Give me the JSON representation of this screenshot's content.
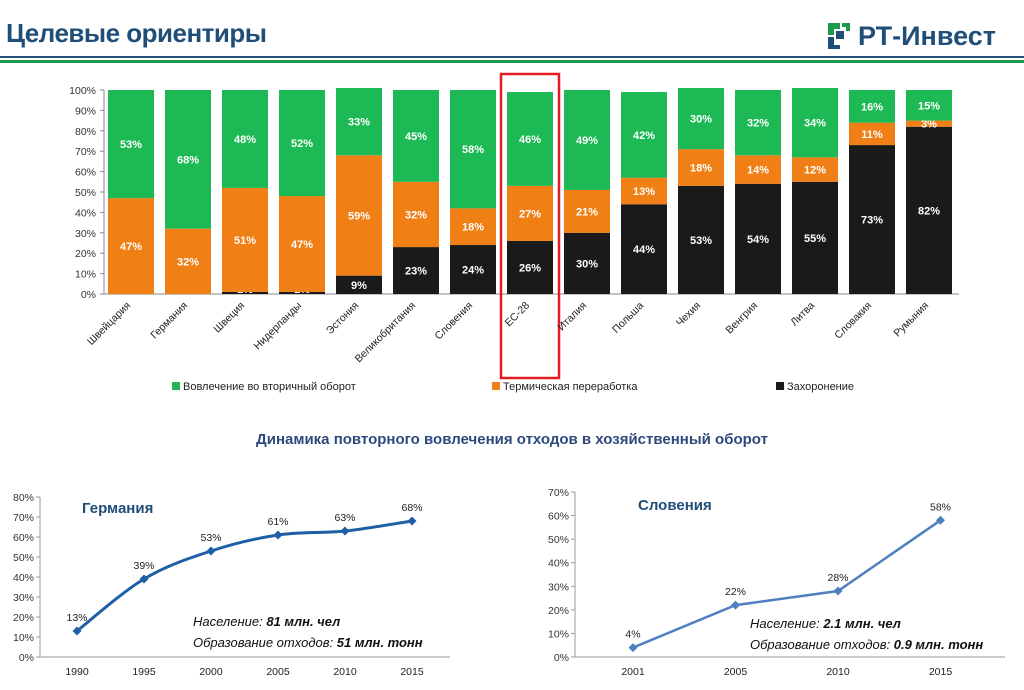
{
  "page": {
    "title": "Целевые ориентиры",
    "logo_text": "РТ-Инвест",
    "section_title": "Динамика повторного вовлечения отходов в хозяйственный оборот"
  },
  "colors": {
    "recycling": "#1db954",
    "thermal": "#f07f16",
    "landfill": "#1a1a1a",
    "brand_blue": "#1f4e79",
    "brand_green": "#1a9a4a",
    "highlight": "#e31b23",
    "line_germany": "#1f5fa6",
    "line_slovenia": "#4f7fbf"
  },
  "chart_data": [
    {
      "type": "bar",
      "stacked": true,
      "categories": [
        "Швейцария",
        "Германия",
        "Швеция",
        "Нидерланды",
        "Эстония",
        "Великобритания",
        "Словения",
        "ЕС-28",
        "Италия",
        "Польша",
        "Чехия",
        "Венгрия",
        "Литва",
        "Словакия",
        "Румыния"
      ],
      "series": [
        {
          "name": "Захоронение",
          "values": [
            0,
            0,
            1,
            1,
            9,
            23,
            24,
            26,
            30,
            44,
            53,
            54,
            55,
            73,
            82
          ],
          "labels": [
            "",
            "",
            "1%",
            "1%",
            "9%",
            "23%",
            "24%",
            "26%",
            "30%",
            "44%",
            "53%",
            "54%",
            "55%",
            "73%",
            "82%"
          ]
        },
        {
          "name": "Термическая переработка",
          "values": [
            47,
            32,
            51,
            47,
            59,
            32,
            18,
            27,
            21,
            13,
            18,
            14,
            12,
            11,
            3
          ],
          "labels": [
            "47%",
            "32%",
            "51%",
            "47%",
            "59%",
            "32%",
            "18%",
            "27%",
            "21%",
            "13%",
            "18%",
            "14%",
            "12%",
            "11%",
            "3%"
          ]
        },
        {
          "name": "Вовлечение во вторичный оборот",
          "values": [
            53,
            68,
            48,
            52,
            33,
            45,
            58,
            46,
            49,
            42,
            30,
            32,
            34,
            16,
            15
          ],
          "labels": [
            "53%",
            "68%",
            "48%",
            "52%",
            "33%",
            "45%",
            "58%",
            "46%",
            "49%",
            "42%",
            "30%",
            "32%",
            "34%",
            "16%",
            "15%"
          ]
        }
      ],
      "legend": [
        "Вовлечение во вторичный оборот",
        "Термическая переработка",
        "Захоронение"
      ],
      "legend_placement": "bottom",
      "yticks": [
        "0%",
        "10%",
        "20%",
        "30%",
        "40%",
        "50%",
        "60%",
        "70%",
        "80%",
        "90%",
        "100%"
      ],
      "ylim": [
        0,
        100
      ],
      "highlight_category": "ЕС-28"
    },
    {
      "type": "line",
      "title": "Германия",
      "x": [
        "1990",
        "1995",
        "2000",
        "2005",
        "2010",
        "2015"
      ],
      "values": [
        13,
        39,
        53,
        61,
        63,
        68
      ],
      "labels": [
        "13%",
        "39%",
        "53%",
        "61%",
        "63%",
        "68%"
      ],
      "yticks": [
        "0%",
        "10%",
        "20%",
        "30%",
        "40%",
        "50%",
        "60%",
        "70%",
        "80%"
      ],
      "ylim": [
        0,
        80
      ],
      "smooth": true,
      "note_population_label": "Население:",
      "note_population_value": "81 млн. чел",
      "note_waste_label": "Образование отходов:",
      "note_waste_value": "51 млн. тонн"
    },
    {
      "type": "line",
      "title": "Словения",
      "x": [
        "2001",
        "2005",
        "2010",
        "2015"
      ],
      "values": [
        4,
        22,
        28,
        58
      ],
      "labels": [
        "4%",
        "22%",
        "28%",
        "58%"
      ],
      "yticks": [
        "0%",
        "10%",
        "20%",
        "30%",
        "40%",
        "50%",
        "60%",
        "70%"
      ],
      "ylim": [
        0,
        70
      ],
      "smooth": false,
      "note_population_label": "Население:",
      "note_population_value": "2.1 млн. чел",
      "note_waste_label": "Образование отходов:",
      "note_waste_value": "0.9 млн. тонн"
    }
  ]
}
